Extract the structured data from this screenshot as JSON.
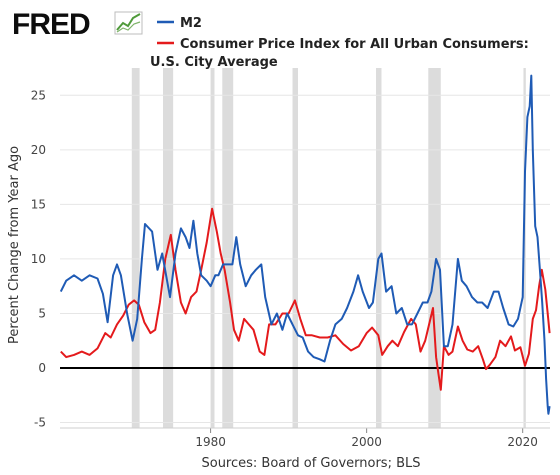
{
  "brand": {
    "logo_text": "FRED",
    "logo_icon": "sparkline-chart-icon"
  },
  "colors": {
    "m2": "#1f5bb5",
    "cpi": "#e41a1c",
    "recession": "#dcdcdc",
    "zero_line": "#000000",
    "grid": "#e6e6e6"
  },
  "chart_data": {
    "type": "line",
    "title": "",
    "xlabel": "",
    "ylabel": "Percent Change from Year Ago",
    "source": "Sources: Board of Governors; BLS",
    "xlim": [
      1960.7,
      2023.5
    ],
    "ylim": [
      -5.5,
      27.5
    ],
    "x_ticks": [
      1980,
      2000,
      2020
    ],
    "y_ticks": [
      -5,
      0,
      5,
      10,
      15,
      20,
      25
    ],
    "grid": "horizontal",
    "legend_placement": "top-left",
    "zero_line": 0,
    "recessions": [
      [
        1969.9,
        1970.9
      ],
      [
        1973.9,
        1975.2
      ],
      [
        1980.0,
        1980.5
      ],
      [
        1981.5,
        1982.9
      ],
      [
        1990.5,
        1991.2
      ],
      [
        2001.2,
        2001.9
      ],
      [
        2007.9,
        2009.5
      ],
      [
        2020.1,
        2020.4
      ]
    ],
    "series": [
      {
        "name": "M2",
        "color": "#1f5bb5",
        "points": [
          [
            1960.8,
            7.0
          ],
          [
            1961.5,
            8.0
          ],
          [
            1962.5,
            8.5
          ],
          [
            1963.5,
            8.0
          ],
          [
            1964.5,
            8.5
          ],
          [
            1965.5,
            8.2
          ],
          [
            1966.2,
            6.8
          ],
          [
            1966.8,
            4.2
          ],
          [
            1967.5,
            8.5
          ],
          [
            1968.0,
            9.5
          ],
          [
            1968.5,
            8.5
          ],
          [
            1969.3,
            5.0
          ],
          [
            1970.0,
            2.5
          ],
          [
            1970.6,
            4.5
          ],
          [
            1971.2,
            10.0
          ],
          [
            1971.6,
            13.2
          ],
          [
            1972.5,
            12.5
          ],
          [
            1973.2,
            9.0
          ],
          [
            1973.8,
            10.5
          ],
          [
            1974.3,
            8.5
          ],
          [
            1974.8,
            6.5
          ],
          [
            1975.5,
            10.5
          ],
          [
            1976.2,
            12.8
          ],
          [
            1976.8,
            12.0
          ],
          [
            1977.3,
            11.0
          ],
          [
            1977.8,
            13.5
          ],
          [
            1978.3,
            10.5
          ],
          [
            1978.8,
            8.5
          ],
          [
            1979.5,
            8.0
          ],
          [
            1980.0,
            7.5
          ],
          [
            1980.6,
            8.5
          ],
          [
            1981.0,
            8.5
          ],
          [
            1981.6,
            9.5
          ],
          [
            1982.2,
            9.5
          ],
          [
            1982.8,
            9.5
          ],
          [
            1983.3,
            12.0
          ],
          [
            1983.8,
            9.5
          ],
          [
            1984.5,
            7.5
          ],
          [
            1985.2,
            8.5
          ],
          [
            1985.8,
            9.0
          ],
          [
            1986.5,
            9.5
          ],
          [
            1987.0,
            6.5
          ],
          [
            1987.8,
            4.0
          ],
          [
            1988.5,
            5.0
          ],
          [
            1989.2,
            3.5
          ],
          [
            1989.8,
            5.0
          ],
          [
            1990.5,
            4.0
          ],
          [
            1991.2,
            3.0
          ],
          [
            1991.8,
            2.8
          ],
          [
            1992.5,
            1.5
          ],
          [
            1993.2,
            1.0
          ],
          [
            1994.0,
            0.8
          ],
          [
            1994.6,
            0.6
          ],
          [
            1995.3,
            2.5
          ],
          [
            1996.0,
            4.0
          ],
          [
            1996.8,
            4.5
          ],
          [
            1997.5,
            5.5
          ],
          [
            1998.3,
            7.0
          ],
          [
            1998.9,
            8.5
          ],
          [
            1999.5,
            7.0
          ],
          [
            2000.3,
            5.5
          ],
          [
            2000.8,
            6.0
          ],
          [
            2001.5,
            10.0
          ],
          [
            2001.9,
            10.5
          ],
          [
            2002.5,
            7.0
          ],
          [
            2003.2,
            7.5
          ],
          [
            2003.8,
            5.0
          ],
          [
            2004.5,
            5.5
          ],
          [
            2005.2,
            4.0
          ],
          [
            2005.8,
            4.0
          ],
          [
            2006.5,
            5.0
          ],
          [
            2007.2,
            6.0
          ],
          [
            2007.8,
            6.0
          ],
          [
            2008.3,
            7.0
          ],
          [
            2008.9,
            10.0
          ],
          [
            2009.4,
            9.0
          ],
          [
            2009.9,
            2.0
          ],
          [
            2010.4,
            2.0
          ],
          [
            2011.0,
            4.0
          ],
          [
            2011.7,
            10.0
          ],
          [
            2012.2,
            8.0
          ],
          [
            2012.8,
            7.5
          ],
          [
            2013.5,
            6.5
          ],
          [
            2014.2,
            6.0
          ],
          [
            2014.8,
            6.0
          ],
          [
            2015.5,
            5.5
          ],
          [
            2016.3,
            7.0
          ],
          [
            2016.9,
            7.0
          ],
          [
            2017.5,
            5.5
          ],
          [
            2018.2,
            4.0
          ],
          [
            2018.8,
            3.8
          ],
          [
            2019.4,
            4.5
          ],
          [
            2020.0,
            6.5
          ],
          [
            2020.3,
            18.0
          ],
          [
            2020.6,
            23.0
          ],
          [
            2020.9,
            24.0
          ],
          [
            2021.1,
            26.8
          ],
          [
            2021.3,
            20.0
          ],
          [
            2021.6,
            13.0
          ],
          [
            2021.9,
            12.0
          ],
          [
            2022.2,
            9.0
          ],
          [
            2022.5,
            6.0
          ],
          [
            2022.8,
            2.5
          ],
          [
            2023.0,
            -1.0
          ],
          [
            2023.2,
            -3.5
          ],
          [
            2023.3,
            -4.2
          ],
          [
            2023.45,
            -3.5
          ]
        ]
      },
      {
        "name": "Consumer Price Index for All Urban Consumers: U.S. City Average",
        "color": "#e41a1c",
        "points": [
          [
            1960.8,
            1.5
          ],
          [
            1961.5,
            1.0
          ],
          [
            1962.5,
            1.2
          ],
          [
            1963.5,
            1.5
          ],
          [
            1964.5,
            1.2
          ],
          [
            1965.5,
            1.8
          ],
          [
            1966.5,
            3.2
          ],
          [
            1967.2,
            2.8
          ],
          [
            1968.0,
            4.0
          ],
          [
            1968.8,
            4.8
          ],
          [
            1969.5,
            5.8
          ],
          [
            1970.2,
            6.2
          ],
          [
            1970.8,
            5.8
          ],
          [
            1971.5,
            4.2
          ],
          [
            1972.3,
            3.2
          ],
          [
            1972.9,
            3.5
          ],
          [
            1973.5,
            6.0
          ],
          [
            1974.2,
            10.0
          ],
          [
            1974.9,
            12.2
          ],
          [
            1975.5,
            9.0
          ],
          [
            1976.2,
            6.0
          ],
          [
            1976.8,
            5.0
          ],
          [
            1977.5,
            6.5
          ],
          [
            1978.2,
            7.0
          ],
          [
            1978.8,
            9.0
          ],
          [
            1979.5,
            11.5
          ],
          [
            1980.2,
            14.6
          ],
          [
            1980.8,
            12.5
          ],
          [
            1981.3,
            10.5
          ],
          [
            1981.8,
            9.0
          ],
          [
            1982.5,
            6.0
          ],
          [
            1983.0,
            3.5
          ],
          [
            1983.6,
            2.5
          ],
          [
            1984.3,
            4.5
          ],
          [
            1984.9,
            4.0
          ],
          [
            1985.5,
            3.5
          ],
          [
            1986.3,
            1.5
          ],
          [
            1986.9,
            1.2
          ],
          [
            1987.5,
            4.0
          ],
          [
            1988.3,
            4.0
          ],
          [
            1989.2,
            5.0
          ],
          [
            1990.0,
            5.0
          ],
          [
            1990.8,
            6.2
          ],
          [
            1991.5,
            4.5
          ],
          [
            1992.2,
            3.0
          ],
          [
            1993.0,
            3.0
          ],
          [
            1994.0,
            2.8
          ],
          [
            1995.0,
            2.8
          ],
          [
            1996.0,
            3.0
          ],
          [
            1997.0,
            2.2
          ],
          [
            1998.0,
            1.6
          ],
          [
            1999.0,
            2.0
          ],
          [
            2000.0,
            3.2
          ],
          [
            2000.7,
            3.7
          ],
          [
            2001.5,
            3.0
          ],
          [
            2002.0,
            1.2
          ],
          [
            2002.7,
            2.0
          ],
          [
            2003.3,
            2.5
          ],
          [
            2004.0,
            2.0
          ],
          [
            2004.8,
            3.3
          ],
          [
            2005.7,
            4.5
          ],
          [
            2006.3,
            4.0
          ],
          [
            2006.9,
            1.5
          ],
          [
            2007.5,
            2.5
          ],
          [
            2008.0,
            4.0
          ],
          [
            2008.5,
            5.5
          ],
          [
            2008.9,
            1.0
          ],
          [
            2009.2,
            -0.5
          ],
          [
            2009.5,
            -2.0
          ],
          [
            2009.9,
            2.0
          ],
          [
            2010.5,
            1.2
          ],
          [
            2011.0,
            1.5
          ],
          [
            2011.7,
            3.8
          ],
          [
            2012.3,
            2.5
          ],
          [
            2012.9,
            1.7
          ],
          [
            2013.6,
            1.5
          ],
          [
            2014.3,
            2.0
          ],
          [
            2014.9,
            0.8
          ],
          [
            2015.3,
            -0.1
          ],
          [
            2015.8,
            0.3
          ],
          [
            2016.5,
            1.0
          ],
          [
            2017.1,
            2.5
          ],
          [
            2017.8,
            2.0
          ],
          [
            2018.5,
            2.9
          ],
          [
            2019.0,
            1.6
          ],
          [
            2019.7,
            1.9
          ],
          [
            2020.3,
            0.2
          ],
          [
            2020.8,
            1.3
          ],
          [
            2021.3,
            4.5
          ],
          [
            2021.7,
            5.3
          ],
          [
            2022.1,
            7.5
          ],
          [
            2022.45,
            9.0
          ],
          [
            2022.9,
            7.2
          ],
          [
            2023.2,
            5.0
          ],
          [
            2023.45,
            3.2
          ]
        ]
      }
    ]
  }
}
